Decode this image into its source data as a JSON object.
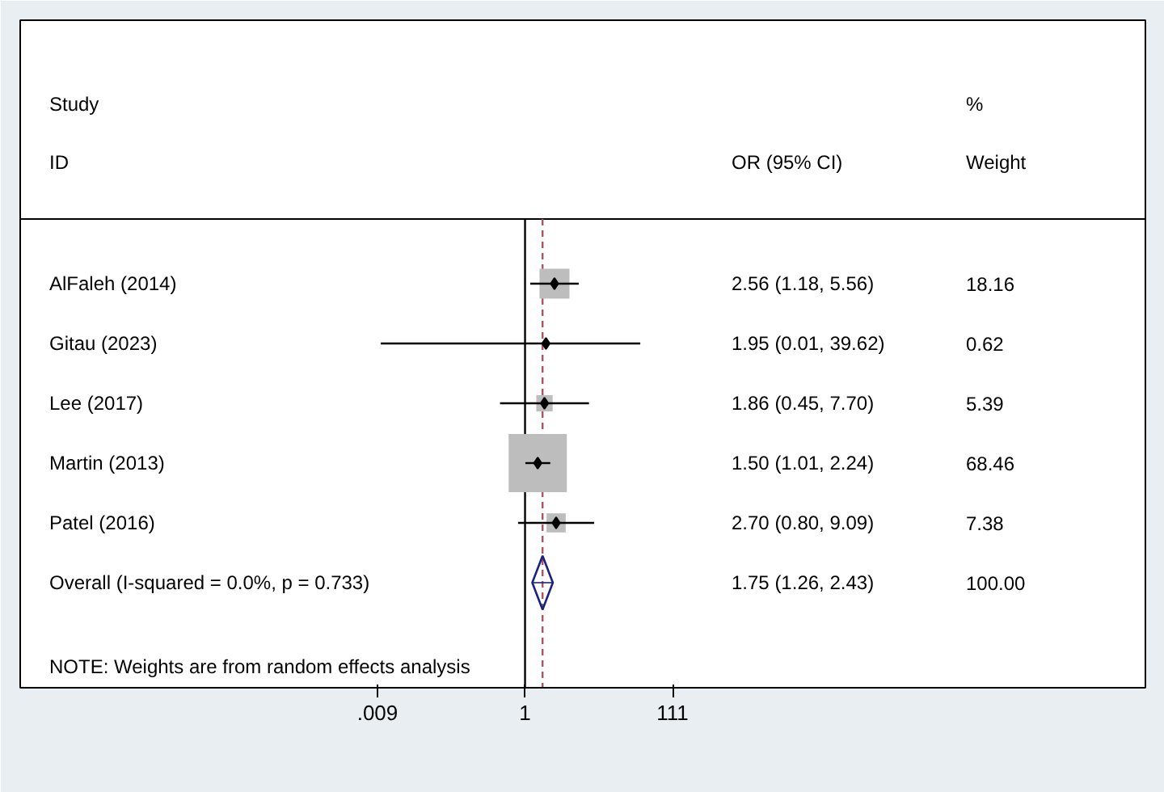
{
  "chart_data": {
    "type": "scatter",
    "orientation": "horizontal",
    "log": "x",
    "grid": false,
    "categories": [
      "AlFaleh (2014)",
      "Gitau (2023)",
      "Lee (2017)",
      "Martin (2013)",
      "Patel (2016)",
      "Overall  (I-squared = 0.0%, p = 0.733)"
    ],
    "series": [
      {
        "marker": "square",
        "color": "#bdbdbd",
        "values": [
          2.56,
          1.95,
          1.86,
          1.5,
          2.7,
          null
        ],
        "errors": [
          [
            1.18,
            5.56
          ],
          [
            0.01,
            39.62
          ],
          [
            0.45,
            7.7
          ],
          [
            1.01,
            2.24
          ],
          [
            0.8,
            9.09
          ],
          null
        ],
        "sizes": [
          0.265,
          0.009,
          0.079,
          1,
          0.108,
          null
        ]
      },
      {
        "marker": "diamond",
        "color": "#1a237e",
        "values": [
          null,
          null,
          null,
          null,
          null,
          1.75
        ],
        "errors": [
          null,
          null,
          null,
          null,
          null,
          [
            1.26,
            2.43
          ]
        ]
      }
    ],
    "xlim": [
      1e-07,
      400000000.0
    ],
    "xticks": [
      {
        "value": 0.009,
        "label": ".009"
      },
      1,
      111
    ],
    "ref_lines": [
      {
        "axis": "x",
        "value": 1,
        "color": "#000000",
        "line_style": "solid"
      },
      {
        "axis": "x",
        "value": 1.75,
        "color": "#b0545e",
        "line_style": "dashed"
      }
    ],
    "annotations": [
      "Study",
      "ID",
      "OR (95% CI)",
      "%",
      "Weight",
      "NOTE: Weights are from random effects analysis",
      "2.56 (1.18, 5.56)",
      "1.95 (0.01, 39.62)",
      "1.86 (0.45, 7.70)",
      "1.50 (1.01, 2.24)",
      "2.70 (0.80, 9.09)",
      "1.75 (1.26, 2.43)",
      "18.16",
      "0.62",
      "5.39",
      "68.46",
      "7.38",
      "100.00"
    ]
  }
}
